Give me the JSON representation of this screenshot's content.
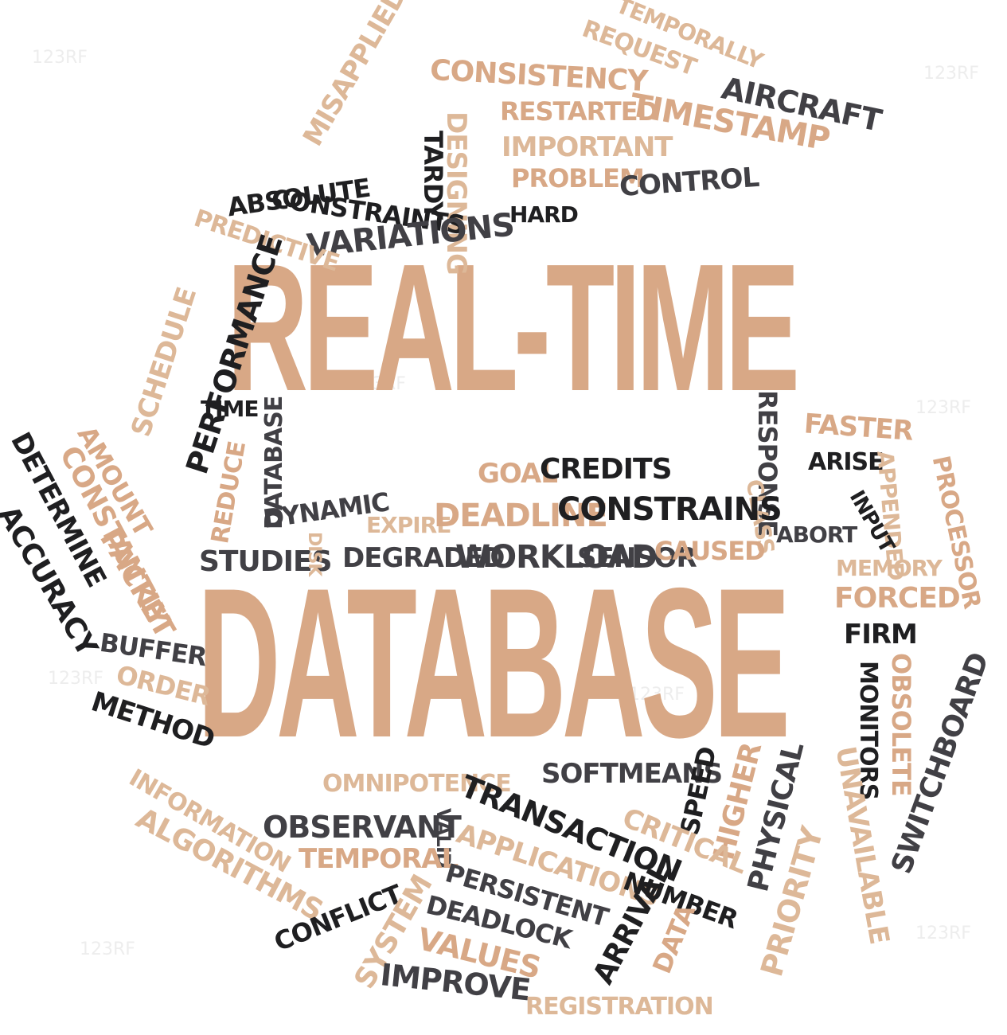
{
  "watermark": "123RF",
  "colors": {
    "tan": "#d8a886",
    "light_tan": "#ddb898",
    "black": "#1f1f21",
    "gray": "#414045",
    "background": "#ffffff"
  },
  "headline": [
    "REAL-TIME",
    "DATABASE"
  ],
  "words": {
    "temporally": "TEMPORALLY",
    "request": "REQUEST",
    "consistency": "CONSISTENCY",
    "aircraft": "AIRCRAFT",
    "restarted": "RESTARTED",
    "timestamp": "TIMESTAMP",
    "misapplied": "MISAPPLIED",
    "designing": "DESIGNING",
    "tardy": "TARDY",
    "important": "IMPORTANT",
    "problem": "PROBLEM",
    "control": "CONTROL",
    "absolute": "ABSOLUTE",
    "constraints": "CONSTRAINTS",
    "hard": "HARD",
    "variations": "VARIATIONS",
    "predictive": "PREDICTIVE",
    "performance": "PERFORMANCE",
    "schedule": "SCHEDULE",
    "time": "TIME",
    "database_small": "DATABASE",
    "reduce": "REDUCE",
    "amount": "AMOUNT",
    "constantly": "CONSTANTLY",
    "determine": "DETERMINE",
    "accuracy": "ACCURACY",
    "packet": "PACKET",
    "response": "RESPONSE",
    "faster": "FASTER",
    "goal": "GOAL",
    "credits": "CREDITS",
    "arise": "ARISE",
    "appended": "APPENDED",
    "processor": "PROCESSOR",
    "class": "CLASS",
    "input": "INPUT",
    "dynamic": "DYNAMIC",
    "expire": "EXPIRE",
    "deadline": "DEADLINE",
    "constrains": "CONSTRAINS",
    "abort": "ABORT",
    "studies": "STUDIES",
    "disk": "DISK",
    "degraded": "DEGRADED",
    "workload": "WORKLOAD",
    "sensor": "SENSOR",
    "caused": "CAUSED",
    "memory": "MEMORY",
    "forced": "FORCED",
    "firm": "FIRM",
    "monitors": "MONITORS",
    "obsolete": "OBSOLETE",
    "switchboard": "SWITCHBOARD",
    "buffer": "BUFFER",
    "order": "ORDER",
    "method": "METHOD",
    "information": "INFORMATION",
    "algorithms": "ALGORITHMS",
    "softmeans": "SOFTMEANS",
    "speed": "SPEED",
    "higher": "HIGHER",
    "physical": "PHYSICAL",
    "unavailable": "UNAVAILABLE",
    "omnipotence": "OMNIPOTENCE",
    "transaction": "TRANSACTION",
    "observant": "OBSERVANT",
    "valid": "VALID",
    "critical": "CRITICAL",
    "applications": "APPLICATIONS",
    "temporal": "TEMPORAL",
    "persistent": "PERSISTENT",
    "number": "NUMBER",
    "priority": "PRIORITY",
    "conflict": "CONFLICT",
    "system": "SYSTEM",
    "deadlock": "DEADLOCK",
    "arrival": "ARRIVAL",
    "data": "DATA",
    "values": "VALUES",
    "improve": "IMPROVE",
    "registration": "REGISTRATION"
  }
}
